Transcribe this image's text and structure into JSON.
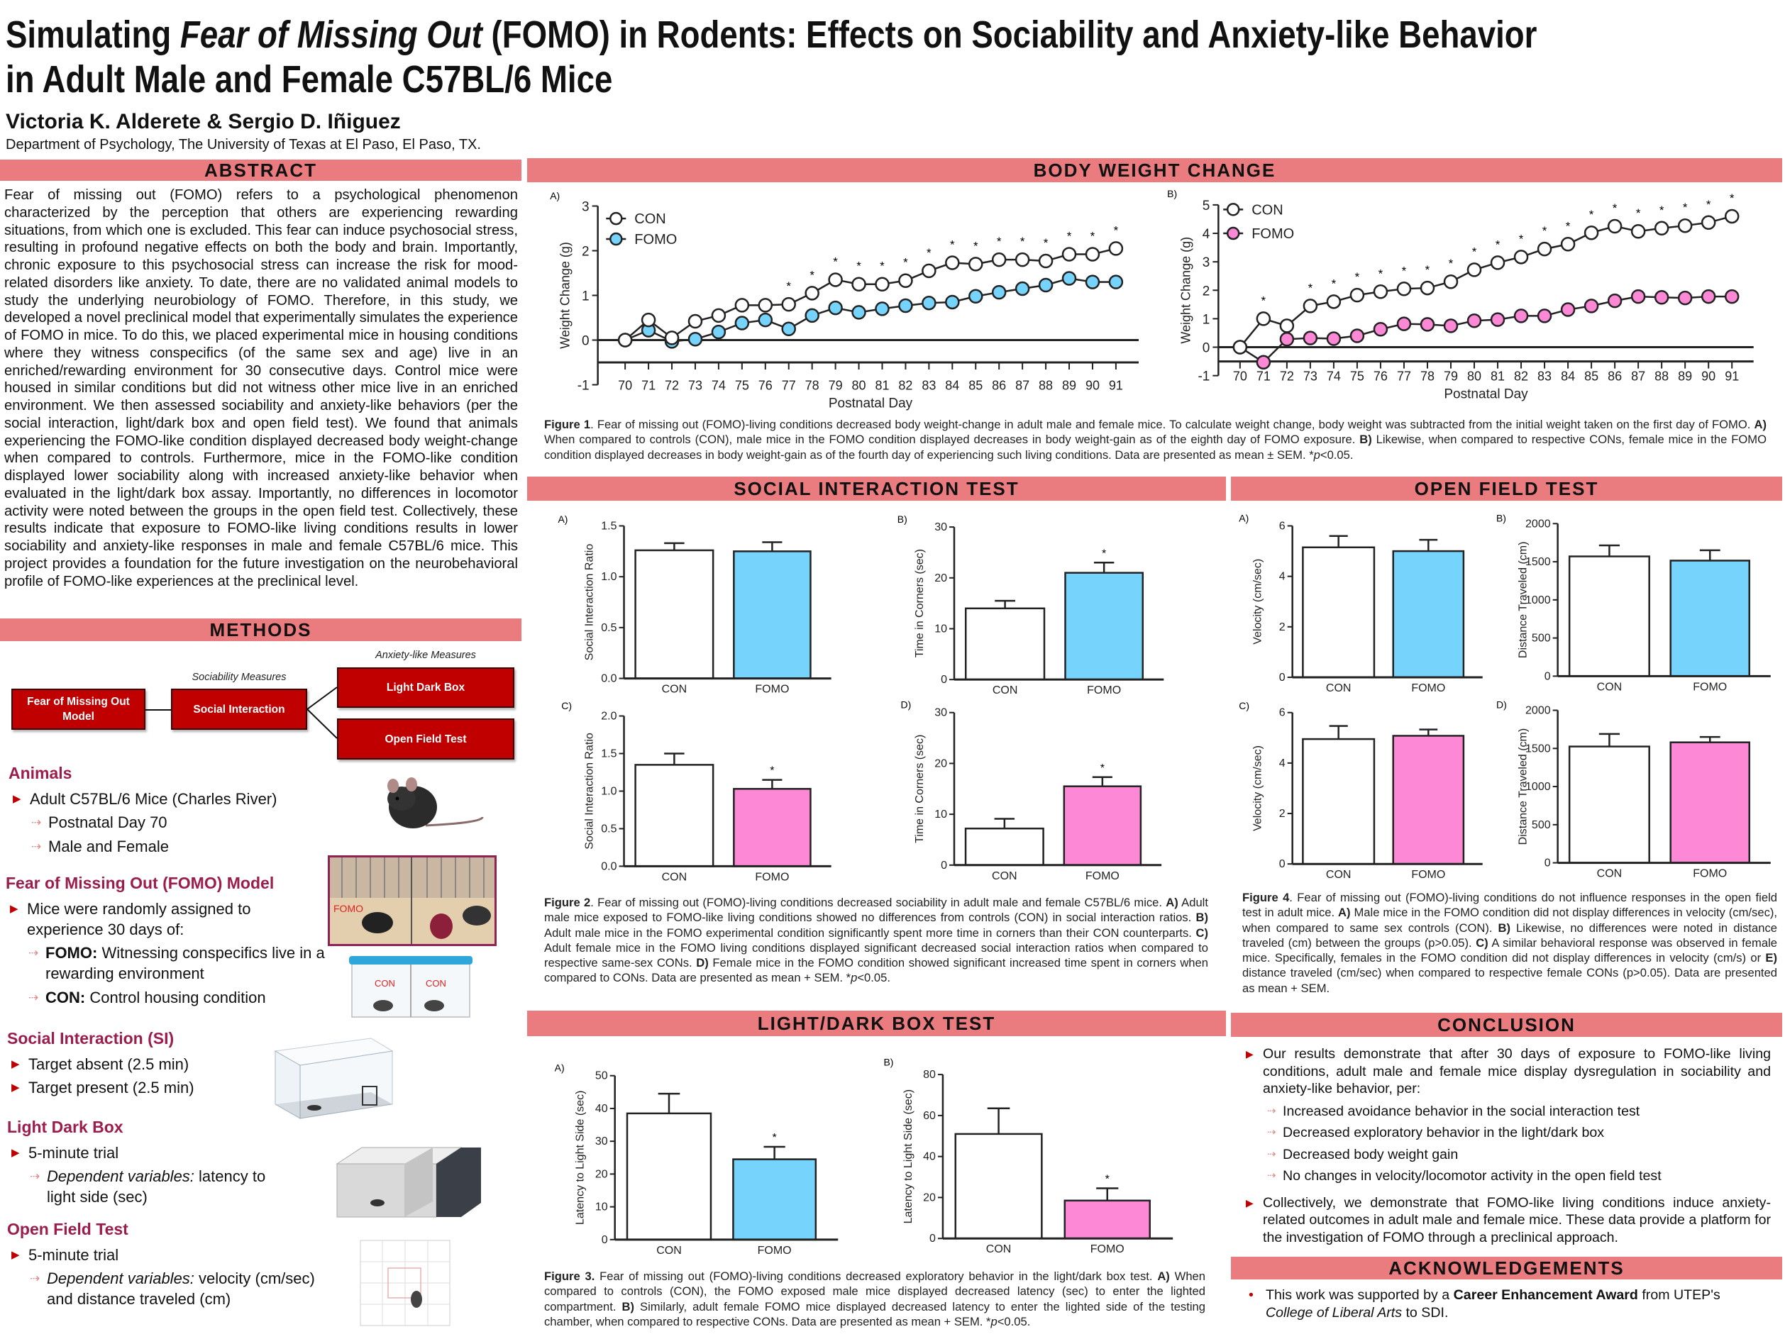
{
  "title": {
    "line1": [
      {
        "t": "Simulating "
      },
      {
        "t": "Fear of Missing Out",
        "i": true
      },
      {
        "t": " (FOMO) in Rodents: Effects on Sociability and Anxiety-like Behavior"
      }
    ],
    "line2": "in Adult Male and Female C57BL/6 Mice"
  },
  "authors": "Victoria K. Alderete & Sergio D. Iñiguez",
  "affiliation": "Department of Psychology, The University of Texas at El Paso, El Paso, TX.",
  "sections": {
    "abstract": "ABSTRACT",
    "methods": "METHODS",
    "body_weight": "BODY WEIGHT CHANGE",
    "social": "SOCIAL INTERACTION TEST",
    "open_field": "OPEN FIELD TEST",
    "light_dark": "LIGHT/DARK BOX TEST",
    "conclusion": "CONCLUSION",
    "ack": "ACKNOWLEDGEMENTS"
  },
  "abstract": "Fear of missing out (FOMO) refers to a psychological phenomenon characterized by the perception that others are experiencing rewarding situations, from which one is excluded. This fear can induce psychosocial stress, resulting in profound negative effects on both the body and brain. Importantly, chronic exposure to this psychosocial stress can increase the risk for mood-related disorders like anxiety. To date, there are no validated animal models to study the underlying neurobiology of FOMO. Therefore, in this study, we developed a novel preclinical model that experimentally simulates the experience of FOMO in mice. To do this, we placed experimental mice in housing conditions where they witness conspecifics (of the same sex and age) live in an enriched/rewarding environment for 30 consecutive days. Control mice were housed in similar conditions but did not witness other mice live in an enriched environment. We then assessed sociability and anxiety-like behaviors (per the social interaction, light/dark box and open field test). We found that animals experiencing the FOMO-like condition displayed decreased body weight-change when compared to controls. Furthermore, mice in the FOMO-like condition displayed lower sociability along with increased anxiety-like behavior when evaluated in the light/dark box assay. Importantly, no differences in locomotor activity were noted between the groups in the open field test. Collectively, these results indicate that exposure to FOMO-like living conditions results in lower sociability and anxiety-like responses in male and female C57BL/6 mice. This project provides a foundation for the future investigation on the neurobehavioral profile of FOMO-like experiences at the preclinical level.",
  "methods": {
    "diagram": {
      "model": "Fear of Missing Out Model",
      "sociability_label": "Sociability Measures",
      "social": "Social Interaction",
      "anxiety_label": "Anxiety-like Measures",
      "light_dark": "Light Dark Box",
      "open_field": "Open Field Test"
    },
    "animals": {
      "heading": "Animals",
      "item": "Adult C57BL/6 Mice (Charles River)",
      "subs": [
        "Postnatal Day 70",
        "Male and Female"
      ]
    },
    "fomo": {
      "heading": "Fear of Missing Out (FOMO) Model",
      "item": "Mice were randomly assigned to experience 30 days of:",
      "subs": [
        [
          {
            "t": "FOMO:",
            "b": true
          },
          {
            "t": " Witnessing conspecifics live in a rewarding environment"
          }
        ],
        [
          {
            "t": "CON:",
            "b": true
          },
          {
            "t": " Control housing condition"
          }
        ]
      ],
      "photo_label": "FOMO",
      "cage_labels": [
        "CON",
        "CON"
      ]
    },
    "si": {
      "heading": "Social Interaction (SI)",
      "items": [
        "Target absent (2.5 min)",
        "Target present (2.5 min)"
      ]
    },
    "ldb": {
      "heading": "Light Dark Box",
      "item": "5-minute trial",
      "sub": [
        {
          "t": "Dependent variables:",
          "i": true
        },
        {
          "t": " latency to light side (sec)"
        }
      ]
    },
    "oft": {
      "heading": "Open Field Test",
      "item": "5-minute trial",
      "sub": [
        {
          "t": "Dependent variables:",
          "i": true
        },
        {
          "t": " velocity (cm/sec) and distance traveled (cm)"
        }
      ]
    }
  },
  "captions": {
    "fig1": [
      {
        "t": "Figure 1",
        "b": true
      },
      {
        "t": ". Fear of missing out (FOMO)-living conditions decreased body weight-change in adult male and female mice. To calculate weight change, body weight was subtracted from the initial weight taken on the first day of FOMO. "
      },
      {
        "t": "A)",
        "b": true
      },
      {
        "t": " When compared to controls (CON), male mice in the FOMO condition displayed decreases in body weight-gain as of the eighth day of FOMO exposure. "
      },
      {
        "t": "B)",
        "b": true
      },
      {
        "t": " Likewise, when compared to respective CONs, female mice in the FOMO condition displayed decreases in body weight-gain as of the fourth day of experiencing such living conditions. Data are presented as mean ± SEM. *"
      },
      {
        "t": "p",
        "i": true
      },
      {
        "t": "<0.05."
      }
    ],
    "fig2": [
      {
        "t": "Figure 2",
        "b": true
      },
      {
        "t": ". Fear of missing out (FOMO)-living conditions decreased sociability in adult male and female C57BL/6 mice. "
      },
      {
        "t": "A)",
        "b": true
      },
      {
        "t": " Adult male mice exposed to FOMO-like living conditions showed no differences from controls (CON) in social interaction ratios. "
      },
      {
        "t": "B)",
        "b": true
      },
      {
        "t": " Adult male mice in the FOMO experimental condition significantly spent more time in corners than their CON counterparts. "
      },
      {
        "t": "C)",
        "b": true
      },
      {
        "t": " Adult female mice in the FOMO living conditions displayed significant decreased social interaction ratios when compared to respective same-sex CONs. "
      },
      {
        "t": "D)",
        "b": true
      },
      {
        "t": " Female mice in the FOMO condition showed significant increased time spent in corners when compared to CONs. Data are presented as mean + SEM. *"
      },
      {
        "t": "p",
        "i": true
      },
      {
        "t": "<0.05."
      }
    ],
    "fig3": [
      {
        "t": "Figure 3.",
        "b": true
      },
      {
        "t": " Fear of missing out (FOMO)-living conditions decreased exploratory behavior in the light/dark box test. "
      },
      {
        "t": "A)",
        "b": true
      },
      {
        "t": " When compared to controls (CON), the FOMO exposed male mice displayed decreased latency (sec) to enter the lighted compartment. "
      },
      {
        "t": "B)",
        "b": true
      },
      {
        "t": " Similarly, adult female FOMO mice displayed decreased latency to enter the lighted side of the testing chamber, when compared to respective CONs.  Data are presented as mean + SEM. *"
      },
      {
        "t": "p",
        "i": true
      },
      {
        "t": "<0.05."
      }
    ],
    "fig4": [
      {
        "t": "Figure 4",
        "b": true
      },
      {
        "t": ". Fear of missing out (FOMO)-living conditions do not influence responses in the open field test in adult mice. "
      },
      {
        "t": "A)",
        "b": true
      },
      {
        "t": " Male mice in the FOMO condition did not display differences in velocity (cm/sec), when compared to same sex controls (CON). "
      },
      {
        "t": "B)",
        "b": true
      },
      {
        "t": " Likewise, no differences were noted in distance traveled (cm) between the groups (p>0.05). "
      },
      {
        "t": "C)",
        "b": true
      },
      {
        "t": " A similar behavioral response was observed in female mice. Specifically, females in the FOMO condition did not display differences in velocity (cm/s) or "
      },
      {
        "t": "E)",
        "b": true
      },
      {
        "t": " distance traveled (cm/sec) when compared to respective female CONs (p>0.05). Data are presented as mean + SEM."
      }
    ]
  },
  "conclusion": {
    "point1": "Our results demonstrate that after 30 days of exposure to FOMO-like  living conditions, adult male and female mice display dysregulation in sociability and anxiety-like behavior, per:",
    "subs": [
      "Increased avoidance behavior in the social interaction test",
      "Decreased exploratory behavior in the light/dark box",
      "Decreased body weight gain",
      "No changes in velocity/locomotor activity in the open field test"
    ],
    "point2": "Collectively, we demonstrate that FOMO-like living conditions induce anxiety-related outcomes in adult male and female mice. These data provide a platform for the investigation of FOMO through a preclinical approach."
  },
  "ack": [
    {
      "t": "This work was supported by a "
    },
    {
      "t": "Career Enhancement Award",
      "b": true
    },
    {
      "t": " from UTEP's "
    },
    {
      "t": "College of Liberal Arts",
      "i": true
    },
    {
      "t": " to SDI."
    }
  ],
  "colors": {
    "header": "#ea7c80",
    "box": "#c00000",
    "heading": "#9b1d4c",
    "male_fomo": "#76d3fb",
    "female_fomo": "#fd88d6",
    "con": "#ffffff"
  },
  "chart_data": [
    {
      "id": "bw_a",
      "type": "line",
      "panel": "A)",
      "ylabel": "Weight Change (g)",
      "xlabel": "Postnatal Day",
      "ylim": [
        -1,
        3
      ],
      "yticks": [
        "-1",
        "0",
        "1",
        "2",
        "3"
      ],
      "x": [
        70,
        71,
        72,
        73,
        74,
        75,
        76,
        77,
        78,
        79,
        80,
        81,
        82,
        83,
        84,
        85,
        86,
        87,
        88,
        89,
        90,
        91
      ],
      "series": [
        {
          "name": "CON",
          "color": "#ffffff",
          "values": [
            0,
            0.45,
            0.05,
            0.42,
            0.55,
            0.78,
            0.78,
            0.8,
            1.05,
            1.35,
            1.25,
            1.25,
            1.33,
            1.55,
            1.73,
            1.7,
            1.8,
            1.8,
            1.77,
            1.92,
            1.92,
            2.05
          ]
        },
        {
          "name": "FOMO",
          "color": "#76d3fb",
          "values": [
            0,
            0.22,
            -0.03,
            0.02,
            0.18,
            0.38,
            0.45,
            0.25,
            0.55,
            0.72,
            0.62,
            0.7,
            0.77,
            0.83,
            0.85,
            0.98,
            1.07,
            1.15,
            1.23,
            1.38,
            1.3,
            1.3
          ]
        }
      ],
      "significant_days": [
        77,
        78,
        79,
        80,
        81,
        82,
        83,
        84,
        85,
        86,
        87,
        88,
        89,
        90,
        91
      ]
    },
    {
      "id": "bw_b",
      "type": "line",
      "panel": "B)",
      "ylabel": "Weight Change (g)",
      "xlabel": "Postnatal Day",
      "ylim": [
        -1,
        5
      ],
      "yticks": [
        "-1",
        "0",
        "1",
        "2",
        "3",
        "4",
        "5"
      ],
      "x": [
        70,
        71,
        72,
        73,
        74,
        75,
        76,
        77,
        78,
        79,
        80,
        81,
        82,
        83,
        84,
        85,
        86,
        87,
        88,
        89,
        90,
        91
      ],
      "series": [
        {
          "name": "CON",
          "color": "#ffffff",
          "values": [
            0,
            1.0,
            0.75,
            1.45,
            1.6,
            1.83,
            1.95,
            2.05,
            2.08,
            2.3,
            2.72,
            2.97,
            3.17,
            3.45,
            3.62,
            4.02,
            4.25,
            4.07,
            4.18,
            4.27,
            4.38,
            4.6
          ]
        },
        {
          "name": "FOMO",
          "color": "#fd88d6",
          "values": [
            0,
            -0.53,
            0.28,
            0.32,
            0.3,
            0.4,
            0.63,
            0.82,
            0.8,
            0.75,
            0.93,
            0.97,
            1.1,
            1.1,
            1.32,
            1.45,
            1.63,
            1.78,
            1.75,
            1.73,
            1.78,
            1.78
          ]
        }
      ],
      "significant_days": [
        71,
        73,
        74,
        75,
        76,
        77,
        78,
        79,
        80,
        81,
        82,
        83,
        84,
        85,
        86,
        87,
        88,
        89,
        90,
        91
      ]
    },
    {
      "id": "si_a",
      "type": "bar",
      "panel": "A)",
      "ylabel": "Social Interaction Ratio",
      "categories": [
        "CON",
        "FOMO"
      ],
      "values": [
        1.26,
        1.25
      ],
      "sem": [
        0.07,
        0.09
      ],
      "significant": [
        false,
        false
      ],
      "ylim": [
        0,
        1.5
      ],
      "yticks": [
        "0.0",
        "0.5",
        "1.0",
        "1.5"
      ],
      "colors": [
        "#ffffff",
        "#76d3fb"
      ]
    },
    {
      "id": "si_b",
      "type": "bar",
      "panel": "B)",
      "ylabel": "Time in Corners (sec)",
      "categories": [
        "CON",
        "FOMO"
      ],
      "values": [
        14,
        21
      ],
      "sem": [
        1.5,
        2
      ],
      "significant": [
        false,
        true
      ],
      "ylim": [
        0,
        30
      ],
      "yticks": [
        "0",
        "10",
        "20",
        "30"
      ],
      "colors": [
        "#ffffff",
        "#76d3fb"
      ]
    },
    {
      "id": "si_c",
      "type": "bar",
      "panel": "C)",
      "ylabel": "Social Interaction Ratio",
      "categories": [
        "CON",
        "FOMO"
      ],
      "values": [
        1.35,
        1.03
      ],
      "sem": [
        0.15,
        0.12
      ],
      "significant": [
        false,
        true
      ],
      "ylim": [
        0,
        2
      ],
      "yticks": [
        "0.0",
        "0.5",
        "1.0",
        "1.5",
        "2.0"
      ],
      "colors": [
        "#ffffff",
        "#fd88d6"
      ]
    },
    {
      "id": "si_d",
      "type": "bar",
      "panel": "D)",
      "ylabel": "Time in Corners (sec)",
      "categories": [
        "CON",
        "FOMO"
      ],
      "values": [
        7.2,
        15.5
      ],
      "sem": [
        1.9,
        1.8
      ],
      "significant": [
        false,
        true
      ],
      "ylim": [
        0,
        30
      ],
      "yticks": [
        "0",
        "10",
        "20",
        "30"
      ],
      "colors": [
        "#ffffff",
        "#fd88d6"
      ]
    },
    {
      "id": "of_a",
      "type": "bar",
      "panel": "A)",
      "ylabel": "Velocity (cm/sec)",
      "categories": [
        "CON",
        "FOMO"
      ],
      "values": [
        5.15,
        5.0
      ],
      "sem": [
        0.45,
        0.45
      ],
      "significant": [
        false,
        false
      ],
      "ylim": [
        0,
        6
      ],
      "yticks": [
        "0",
        "2",
        "4",
        "6"
      ],
      "colors": [
        "#ffffff",
        "#76d3fb"
      ]
    },
    {
      "id": "of_b",
      "type": "bar",
      "panel": "B)",
      "ylabel": "Distance Traveled (cm)",
      "categories": [
        "CON",
        "FOMO"
      ],
      "values": [
        1570,
        1515
      ],
      "sem": [
        145,
        135
      ],
      "significant": [
        false,
        false
      ],
      "ylim": [
        0,
        2000
      ],
      "yticks": [
        "0",
        "500",
        "1000",
        "1500",
        "2000"
      ],
      "colors": [
        "#ffffff",
        "#76d3fb"
      ]
    },
    {
      "id": "of_c",
      "type": "bar",
      "panel": "C)",
      "ylabel": "Velocity (cm/sec)",
      "categories": [
        "CON",
        "FOMO"
      ],
      "values": [
        4.95,
        5.08
      ],
      "sem": [
        0.52,
        0.25
      ],
      "significant": [
        false,
        false
      ],
      "ylim": [
        0,
        6
      ],
      "yticks": [
        "0",
        "2",
        "4",
        "6"
      ],
      "colors": [
        "#ffffff",
        "#fd88d6"
      ]
    },
    {
      "id": "of_d",
      "type": "bar",
      "panel": "D)",
      "ylabel": "Distance Traveled (cm)",
      "categories": [
        "CON",
        "FOMO"
      ],
      "values": [
        1525,
        1580
      ],
      "sem": [
        165,
        70
      ],
      "significant": [
        false,
        false
      ],
      "ylim": [
        0,
        2000
      ],
      "yticks": [
        "0",
        "500",
        "1000",
        "1500",
        "2000"
      ],
      "colors": [
        "#ffffff",
        "#fd88d6"
      ]
    },
    {
      "id": "ld_a",
      "type": "bar",
      "panel": "A)",
      "ylabel": "Latency to Light Side (sec)",
      "categories": [
        "CON",
        "FOMO"
      ],
      "values": [
        38.5,
        24.5
      ],
      "sem": [
        6,
        3.8
      ],
      "significant": [
        false,
        true
      ],
      "ylim": [
        0,
        50
      ],
      "yticks": [
        "0",
        "10",
        "20",
        "30",
        "40",
        "50"
      ],
      "colors": [
        "#ffffff",
        "#76d3fb"
      ]
    },
    {
      "id": "ld_b",
      "type": "bar",
      "panel": "B)",
      "ylabel": "Latency to Light Side (sec)",
      "categories": [
        "CON",
        "FOMO"
      ],
      "values": [
        51,
        18.5
      ],
      "sem": [
        12.5,
        6
      ],
      "significant": [
        false,
        true
      ],
      "ylim": [
        0,
        80
      ],
      "yticks": [
        "0",
        "20",
        "40",
        "60",
        "80"
      ],
      "colors": [
        "#ffffff",
        "#fd88d6"
      ]
    }
  ]
}
